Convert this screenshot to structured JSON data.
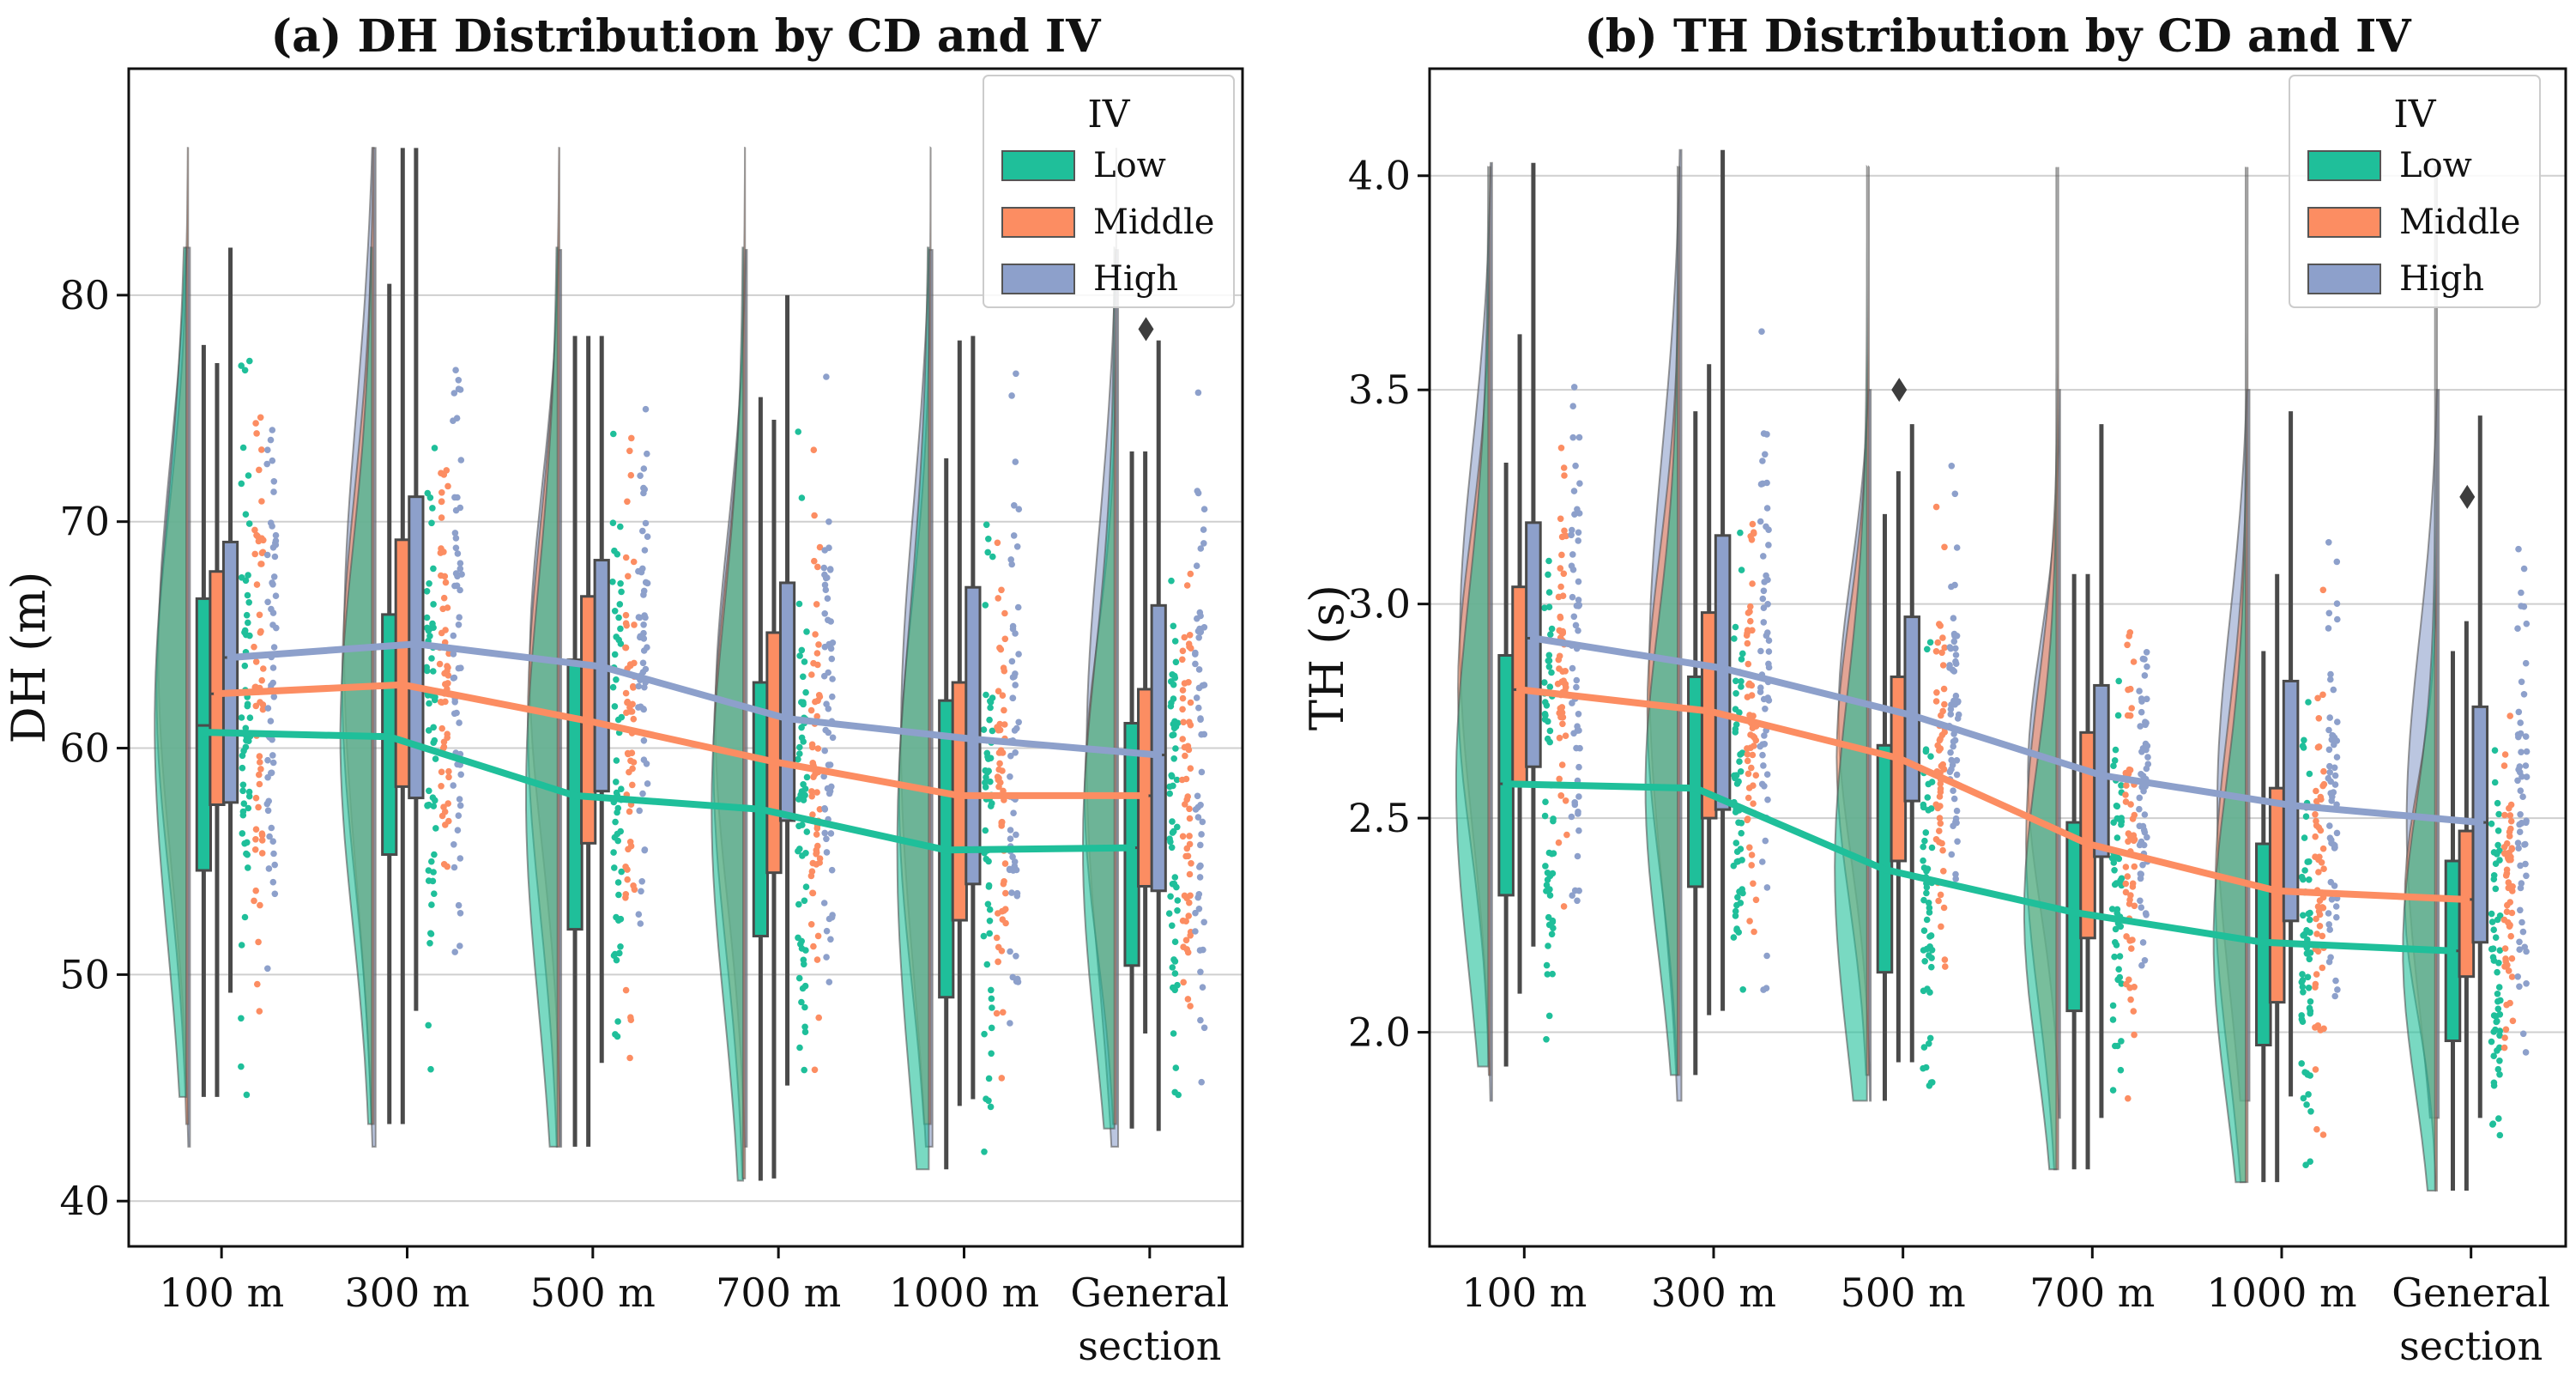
{
  "figure": {
    "colors": {
      "Low": "#1fbf9a",
      "Middle": "#fc8d62",
      "High": "#8da0cb",
      "box_edge": "#4a4a4a",
      "grid": "#cfcfcf"
    }
  },
  "chart_data": [
    {
      "type": "raincloud",
      "title": "(a) DH Distribution by CD and IV",
      "xlabel": "",
      "ylabel": "DH (m)",
      "ylim": [
        38,
        90
      ],
      "yticks": [
        40,
        50,
        60,
        70,
        80
      ],
      "categories": [
        "100 m",
        "300 m",
        "500 m",
        "700 m",
        "1000 m",
        "General section"
      ],
      "legend": {
        "title": "IV",
        "position": "top-right",
        "entries": [
          "Low",
          "Middle",
          "High"
        ]
      },
      "grid": true,
      "series": [
        {
          "name": "Low",
          "means": [
            60.7,
            60.5,
            57.9,
            57.3,
            55.5,
            55.6
          ],
          "box": [
            [
              54.6,
              61.0,
              66.6,
              44.6,
              77.8
            ],
            [
              55.3,
              60.5,
              65.9,
              43.4,
              80.5
            ],
            [
              52.0,
              57.9,
              63.9,
              42.4,
              78.2
            ],
            [
              51.7,
              57.3,
              62.9,
              40.9,
              75.5
            ],
            [
              49.0,
              55.5,
              62.1,
              41.4,
              72.8
            ],
            [
              50.4,
              55.6,
              61.1,
              43.2,
              73.1
            ]
          ],
          "violin": [
            44.6,
            82.1
          ]
        },
        {
          "name": "Middle",
          "means": [
            62.4,
            62.8,
            61.2,
            59.4,
            57.9,
            57.9
          ],
          "box": [
            [
              57.5,
              62.4,
              67.8,
              44.6,
              77.0
            ],
            [
              58.3,
              62.8,
              69.2,
              43.4,
              86.5
            ],
            [
              55.8,
              61.2,
              66.7,
              42.4,
              78.2
            ],
            [
              54.5,
              59.4,
              65.1,
              41.0,
              74.5
            ],
            [
              52.4,
              57.9,
              62.9,
              44.2,
              78.0
            ],
            [
              53.9,
              57.9,
              62.6,
              47.4,
              73.1
            ]
          ],
          "violin": [
            43.4,
            86.5
          ]
        },
        {
          "name": "High",
          "means": [
            64.0,
            64.6,
            63.6,
            61.3,
            60.4,
            59.7
          ],
          "box": [
            [
              57.6,
              64.0,
              69.1,
              49.2,
              82.1
            ],
            [
              57.8,
              64.6,
              71.1,
              48.4,
              86.5
            ],
            [
              58.1,
              63.6,
              68.3,
              46.1,
              78.2
            ],
            [
              56.8,
              61.3,
              67.3,
              45.1,
              80.0
            ],
            [
              54.0,
              60.4,
              67.1,
              44.5,
              78.2
            ],
            [
              53.7,
              59.7,
              66.3,
              43.1,
              78.0
            ]
          ],
          "violin": [
            42.4,
            82.0
          ]
        }
      ],
      "outliers": [
        {
          "category": "General section",
          "value": 78.5
        }
      ]
    },
    {
      "type": "raincloud",
      "title": "(b) TH Distribution by CD and IV",
      "xlabel": "",
      "ylabel": "TH (s)",
      "ylim": [
        1.5,
        4.25
      ],
      "yticks": [
        2.0,
        2.5,
        3.0,
        3.5,
        4.0
      ],
      "categories": [
        "100 m",
        "300 m",
        "500 m",
        "700 m",
        "1000 m",
        "General section"
      ],
      "legend": {
        "title": "IV",
        "position": "top-right",
        "entries": [
          "Low",
          "Middle",
          "High"
        ]
      },
      "grid": true,
      "series": [
        {
          "name": "Low",
          "means": [
            2.58,
            2.57,
            2.38,
            2.28,
            2.21,
            2.19
          ],
          "box": [
            [
              2.32,
              2.58,
              2.88,
              1.92,
              3.33
            ],
            [
              2.34,
              2.57,
              2.83,
              1.9,
              3.45
            ],
            [
              2.14,
              2.38,
              2.67,
              1.84,
              3.21
            ],
            [
              2.05,
              2.28,
              2.49,
              1.68,
              3.07
            ],
            [
              1.97,
              2.21,
              2.44,
              1.65,
              2.89
            ],
            [
              1.98,
              2.19,
              2.4,
              1.63,
              2.89
            ]
          ],
          "violin": [
            1.92,
            4.02
          ]
        },
        {
          "name": "Middle",
          "means": [
            2.8,
            2.75,
            2.64,
            2.44,
            2.33,
            2.31
          ],
          "box": [
            [
              2.58,
              2.8,
              3.04,
              2.09,
              3.63
            ],
            [
              2.5,
              2.75,
              2.98,
              2.04,
              3.56
            ],
            [
              2.4,
              2.64,
              2.83,
              1.93,
              3.31
            ],
            [
              2.22,
              2.44,
              2.7,
              1.68,
              3.07
            ],
            [
              2.07,
              2.33,
              2.57,
              1.65,
              3.07
            ],
            [
              2.13,
              2.31,
              2.47,
              1.63,
              2.96
            ]
          ],
          "violin": [
            1.9,
            4.02
          ]
        },
        {
          "name": "High",
          "means": [
            2.92,
            2.85,
            2.74,
            2.6,
            2.53,
            2.49
          ],
          "box": [
            [
              2.62,
              2.92,
              3.19,
              2.2,
              4.03
            ],
            [
              2.52,
              2.85,
              3.16,
              2.05,
              4.06
            ],
            [
              2.54,
              2.74,
              2.97,
              1.93,
              3.42
            ],
            [
              2.41,
              2.6,
              2.81,
              1.8,
              3.42
            ],
            [
              2.26,
              2.53,
              2.82,
              1.85,
              3.45
            ],
            [
              2.21,
              2.49,
              2.76,
              1.8,
              3.44
            ]
          ],
          "violin": [
            1.84,
            3.5
          ]
        }
      ],
      "outliers": [
        {
          "category": "500 m",
          "value": 3.5
        },
        {
          "category": "General section",
          "value": 3.25
        }
      ]
    }
  ]
}
